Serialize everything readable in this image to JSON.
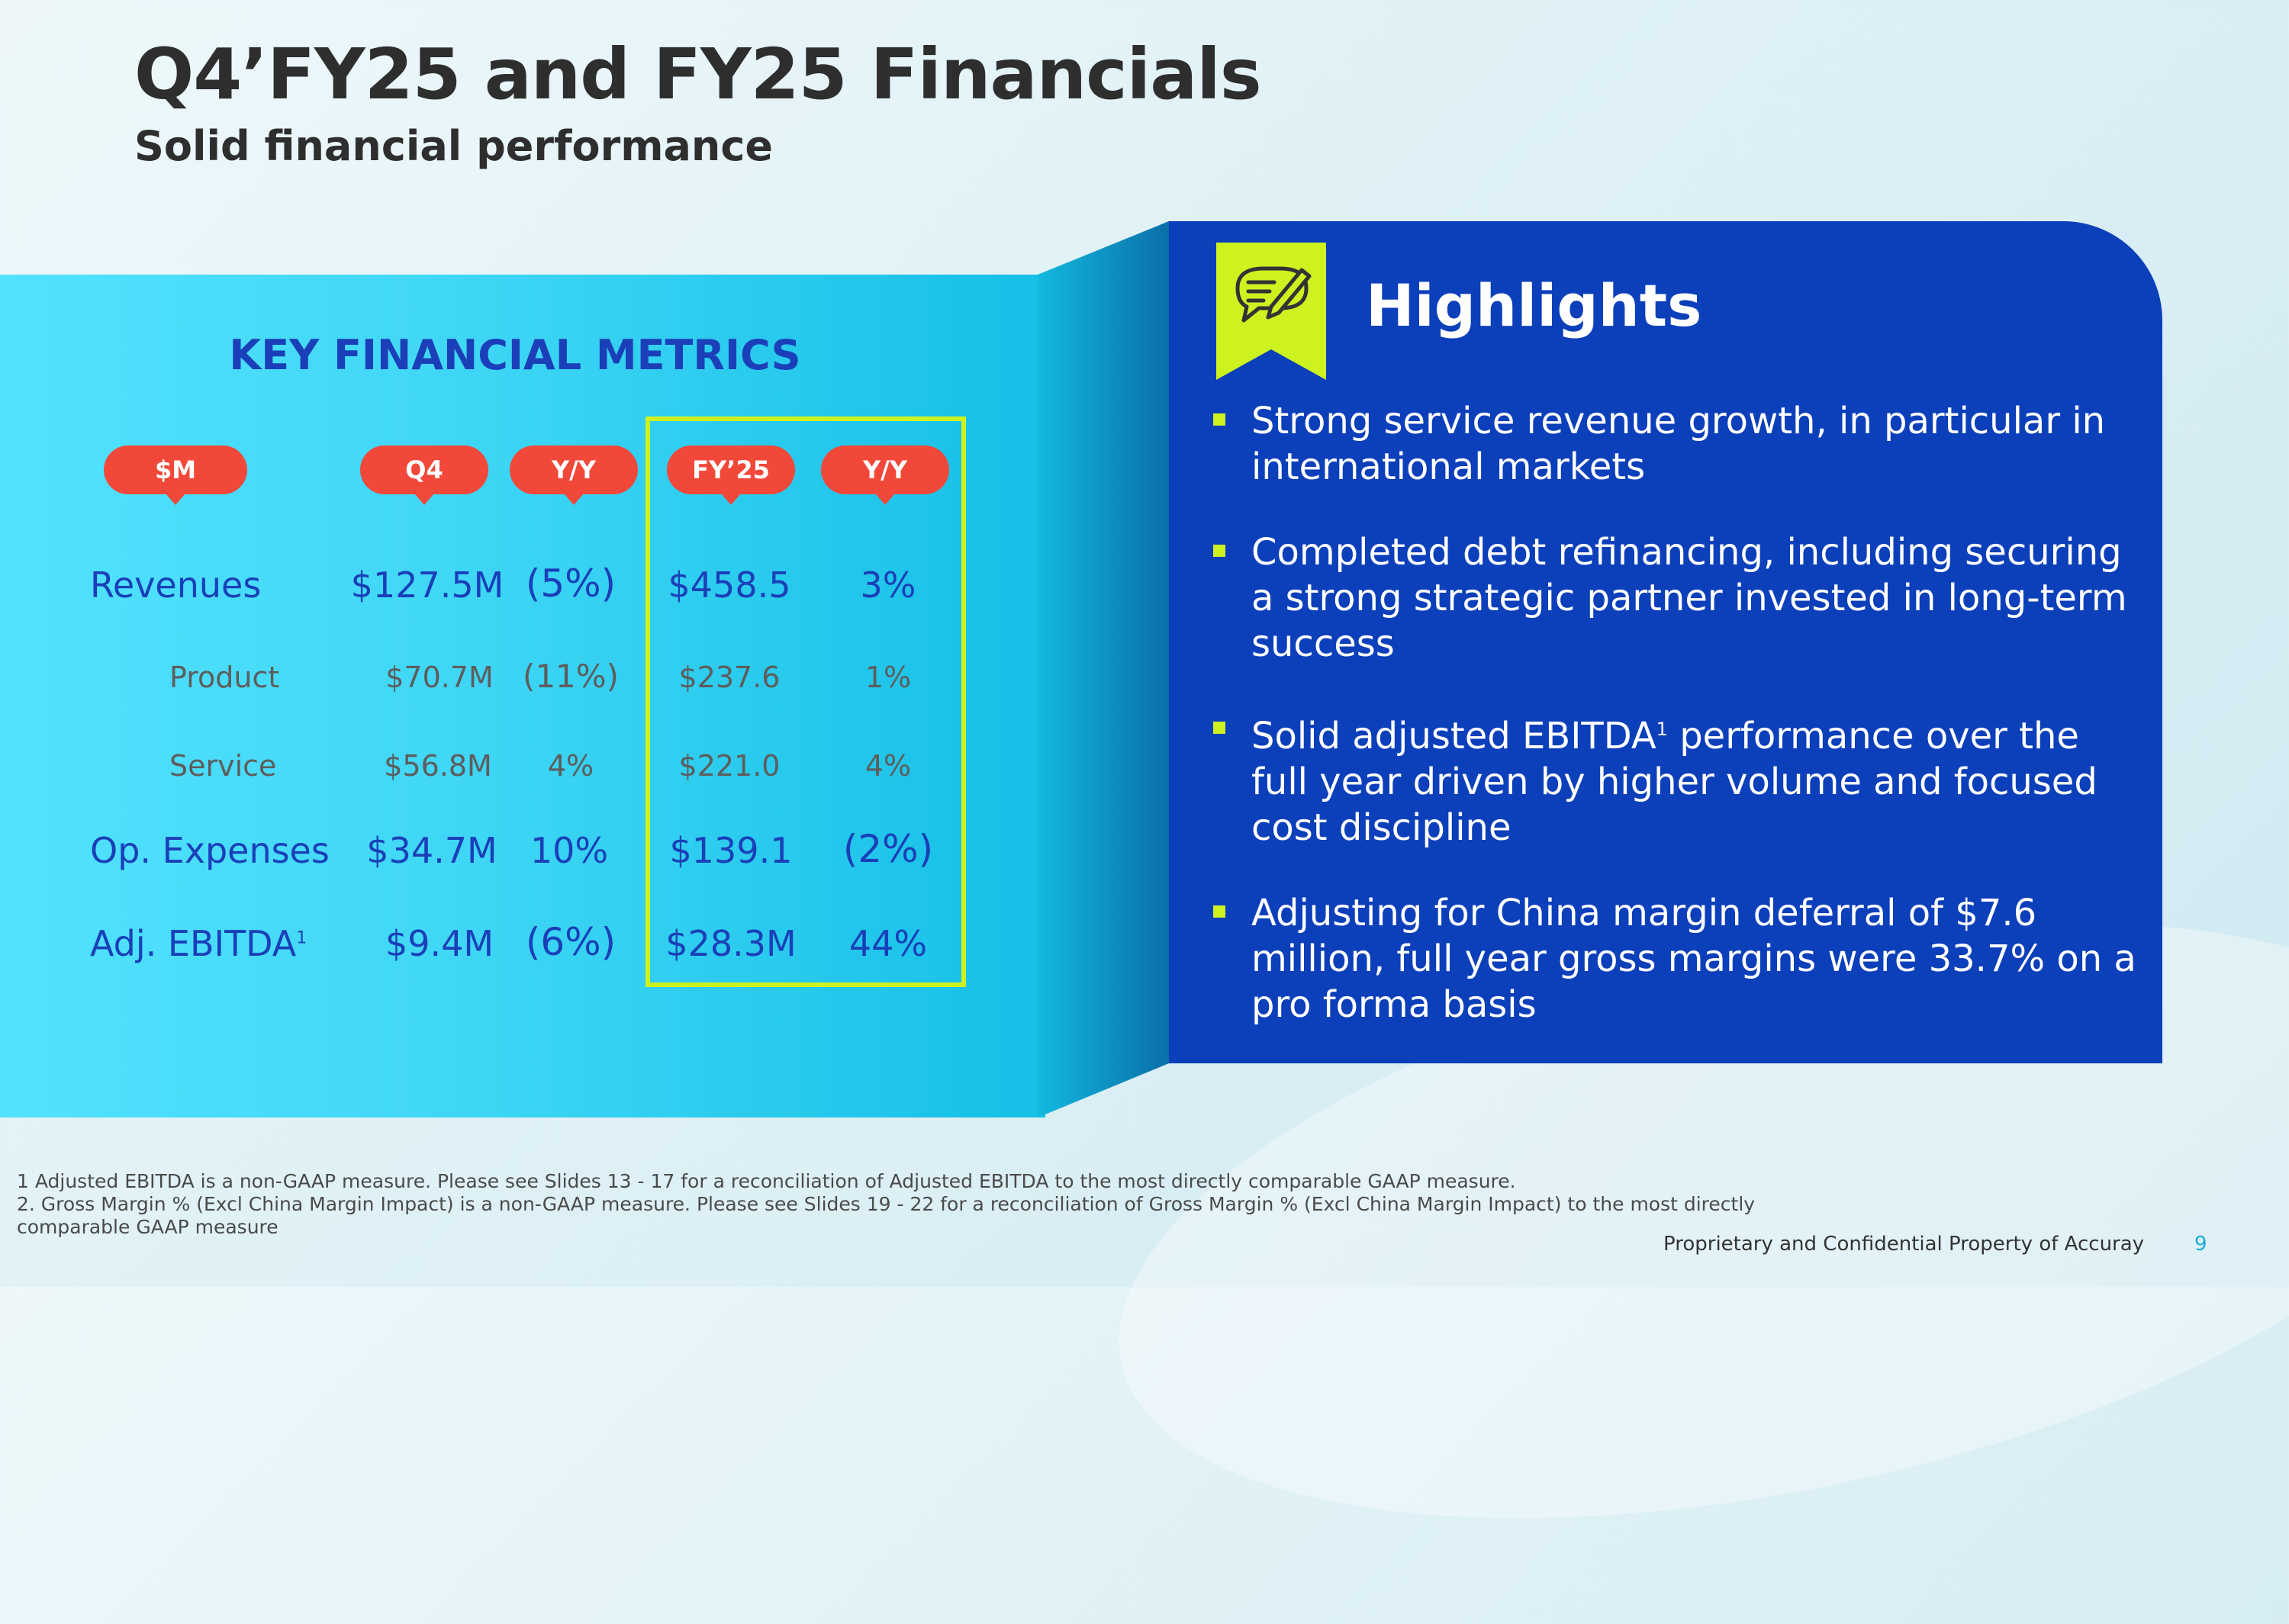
{
  "header": {
    "title": "Q4’FY25 and FY25 Financials",
    "subtitle": "Solid financial performance"
  },
  "metrics": {
    "heading": "KEY FINANCIAL METRICS",
    "columns": [
      "$M",
      "Q4",
      "Y/Y",
      "FY’25",
      "Y/Y"
    ],
    "rows": [
      {
        "label": "Revenues",
        "q4": "$127.5M",
        "q4_yy": "(5%)",
        "fy": "$458.5",
        "fy_yy": "3%"
      },
      {
        "label": "Product",
        "q4": "$70.7M",
        "q4_yy": "(11%)",
        "fy": "$237.6",
        "fy_yy": "1%"
      },
      {
        "label": "Service",
        "q4": "$56.8M",
        "q4_yy": "4%",
        "fy": "$221.0",
        "fy_yy": "4%"
      },
      {
        "label": "Op. Expenses",
        "q4": "$34.7M",
        "q4_yy": "10%",
        "fy": "$139.1",
        "fy_yy": "(2%)"
      },
      {
        "label": "Adj. EBITDA",
        "label_sup": "1",
        "q4": "$9.4M",
        "q4_yy": "(6%)",
        "fy": "$28.3M",
        "fy_yy": "44%"
      }
    ]
  },
  "highlights": {
    "title": "Highlights",
    "icon": "chat-edit-icon",
    "bullets": [
      {
        "text": "Strong service revenue growth, in particular in international markets"
      },
      {
        "text": "Completed debt refinancing, including securing a strong strategic partner invested in long-term success"
      },
      {
        "text_before": "Solid adjusted EBITDA",
        "sup": "1",
        "text_after": " performance over the full year driven by higher volume and focused cost discipline"
      },
      {
        "text": "Adjusting for China margin deferral of $7.6 million, full year gross margins were 33.7% on a pro forma basis"
      }
    ]
  },
  "footnotes": [
    "1 Adjusted EBITDA is a non-GAAP measure.  Please see Slides 13 - 17 for a reconciliation of Adjusted EBITDA to the most directly comparable GAAP measure.",
    "2. Gross Margin % (Excl China Margin Impact) is a non-GAAP measure. Please see Slides 19 - 22 for a reconciliation of Gross Margin % (Excl China Margin Impact) to the most directly",
    "comparable GAAP measure"
  ],
  "footer": {
    "proprietary": "Proprietary and Confidential Property of Accuray",
    "page_number": "9"
  },
  "colors": {
    "pill_red": "#f2483a",
    "metric_blue": "#1a3fb8",
    "highlight_panel": "#0c3fba",
    "accent_lime": "#cdf220",
    "panel_cyan": "#3fd6f5"
  }
}
